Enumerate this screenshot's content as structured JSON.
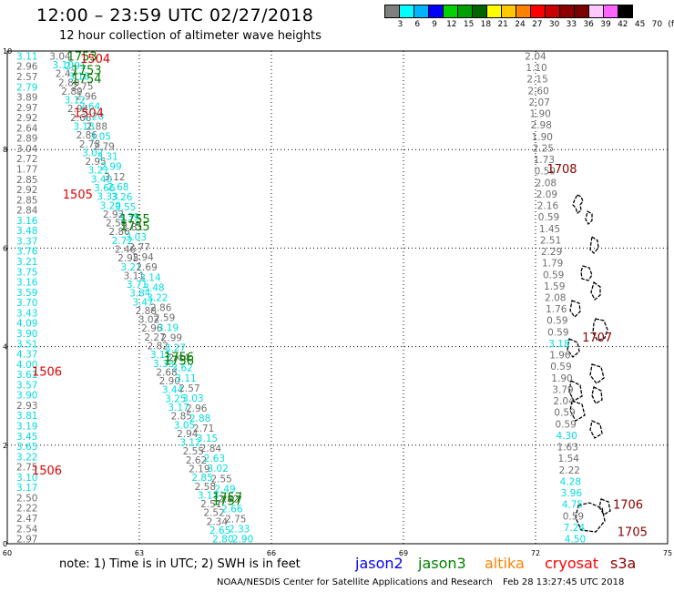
{
  "header": {
    "title": "12:00 – 23:59 UTC 02/27/2018",
    "subtitle": "12 hour collection of altimeter wave heights"
  },
  "colorbar": {
    "colors": [
      "#7f7f7f",
      "#00ffff",
      "#00b4ff",
      "#0000ff",
      "#00d200",
      "#00a000",
      "#006400",
      "#ffff00",
      "#ffc800",
      "#ff8200",
      "#ff0000",
      "#c80000",
      "#8c0000",
      "#780000",
      "#ffc8ff",
      "#ff64ff",
      "#000000"
    ],
    "labels": [
      "3",
      "6",
      "9",
      "12",
      "15",
      "18",
      "21",
      "24",
      "27",
      "30",
      "33",
      "36",
      "39",
      "42",
      "45",
      "70",
      "(ft)"
    ]
  },
  "footer": {
    "note": "note:  1) Time is in UTC;  2) SWH is in feet",
    "satellites": [
      {
        "name": "jason2",
        "color": "#0000ff"
      },
      {
        "name": "jason3",
        "color": "#008000"
      },
      {
        "name": "altika",
        "color": "#ff8000"
      },
      {
        "name": "cryosat",
        "color": "#ff0000"
      },
      {
        "name": "s3a",
        "color": "#8b0000"
      }
    ],
    "credit": "NOAA/NESDIS Center for Satellite Applications and Research",
    "timestamp": "Feb 28 13:27:45 UTC 2018"
  },
  "chart_data": {
    "type": "scatter",
    "xlim": [
      60,
      75
    ],
    "ylim": [
      0,
      10
    ],
    "x_ticks": [
      "60",
      "63",
      "66",
      "69",
      "72",
      "75"
    ],
    "y_ticks": [
      "0",
      "2",
      "4",
      "6",
      "8",
      "10"
    ],
    "grid": true,
    "track_colors": {
      "gray": "#6e6e6e",
      "cyan": "#00dede",
      "green": "#008000",
      "red": "#e00000",
      "darkred": "#8b0000"
    },
    "tracks": [
      {
        "name": "left column",
        "x_start": 60.45,
        "y_start": 9.9,
        "x_end": 60.45,
        "y_end": 0.1,
        "color_key": "mixed",
        "values": [
          "3.11",
          "2.96",
          "2.57",
          "2.79",
          "3.89",
          "2.97",
          "2.92",
          "2.64",
          "2.89",
          "3.04",
          "2.72",
          "1.77",
          "2.85",
          "2.92",
          "2.85",
          "2.84",
          "3.16",
          "3.48",
          "3.37",
          "3.76",
          "3.21",
          "3.75",
          "3.16",
          "3.59",
          "3.70",
          "3.43",
          "4.09",
          "3.90",
          "3.51",
          "4.37",
          "4.00",
          "3.61",
          "3.57",
          "3.90",
          "2.93",
          "3.81",
          "3.19",
          "3.45",
          "3.65",
          "3.22",
          "2.75",
          "3.10",
          "3.17",
          "2.50",
          "2.22",
          "2.47",
          "2.54",
          "2.97"
        ],
        "colors": [
          "c",
          "g",
          "g",
          "c",
          "g",
          "g",
          "g",
          "g",
          "g",
          "g",
          "g",
          "g",
          "g",
          "g",
          "g",
          "g",
          "c",
          "c",
          "c",
          "c",
          "c",
          "c",
          "c",
          "c",
          "c",
          "c",
          "c",
          "c",
          "c",
          "c",
          "c",
          "c",
          "c",
          "c",
          "g",
          "c",
          "c",
          "c",
          "c",
          "c",
          "g",
          "c",
          "c",
          "g",
          "g",
          "g",
          "g",
          "g"
        ]
      },
      {
        "name": "diagonal track A",
        "x_start": 61.2,
        "y_start": 9.9,
        "x_end": 64.9,
        "y_end": 0.1,
        "color_key": "mixed",
        "values": [
          "3.04",
          "3.10",
          "2.47",
          "2.80",
          "2.89",
          "3.12",
          "2.94",
          "2.66",
          "3.18",
          "2.86",
          "2.78",
          "3.02",
          "2.95",
          "3.21",
          "3.40",
          "3.66",
          "3.33",
          "3.20",
          "2.92",
          "2.58",
          "2.86",
          "2.72",
          "2.46",
          "2.95",
          "3.21",
          "3.11",
          "3.71",
          "3.84",
          "3.47",
          "2.88",
          "3.02",
          "2.96",
          "2.27",
          "2.82",
          "3.15",
          "3.33",
          "2.68",
          "2.90",
          "3.44",
          "3.25",
          "3.17",
          "2.85",
          "3.05",
          "2.94",
          "3.12",
          "2.55",
          "2.62",
          "2.19",
          "2.85",
          "2.58",
          "3.13",
          "2.51",
          "2.52",
          "2.34",
          "2.65",
          "2.80"
        ],
        "colors": [
          "g",
          "c",
          "g",
          "g",
          "g",
          "c",
          "g",
          "g",
          "c",
          "g",
          "g",
          "c",
          "g",
          "c",
          "c",
          "c",
          "c",
          "c",
          "g",
          "g",
          "g",
          "c",
          "g",
          "g",
          "c",
          "g",
          "c",
          "c",
          "c",
          "g",
          "g",
          "g",
          "g",
          "g",
          "c",
          "c",
          "g",
          "g",
          "c",
          "c",
          "c",
          "g",
          "c",
          "g",
          "c",
          "g",
          "g",
          "g",
          "c",
          "g",
          "c",
          "g",
          "g",
          "g",
          "c",
          "c"
        ]
      },
      {
        "name": "diagonal track B",
        "x_start": 61.55,
        "y_start": 9.7,
        "x_end": 65.35,
        "y_end": 0.1,
        "color_key": "mixed",
        "values": [
          "2.91",
          "3.18",
          "2.75",
          "2.96",
          "2.64",
          "3.20",
          "2.88",
          "3.05",
          "2.79",
          "3.31",
          "2.99",
          "3.12",
          "2.68",
          "3.26",
          "3.55",
          "3.39",
          "2.81",
          "3.03",
          "2.77",
          "2.94",
          "2.69",
          "3.14",
          "3.48",
          "3.22",
          "2.86",
          "2.59",
          "3.19",
          "2.99",
          "3.27",
          "2.44",
          "3.62",
          "3.11",
          "2.57",
          "3.03",
          "2.96",
          "2.88",
          "2.71",
          "3.15",
          "2.84",
          "2.63",
          "3.02",
          "2.55",
          "2.49",
          "2.82",
          "2.66",
          "2.75",
          "2.33",
          "2.90"
        ],
        "colors": [
          "c",
          "c",
          "g",
          "g",
          "c",
          "c",
          "g",
          "c",
          "g",
          "c",
          "c",
          "g",
          "c",
          "c",
          "c",
          "c",
          "g",
          "c",
          "g",
          "g",
          "g",
          "c",
          "c",
          "c",
          "g",
          "g",
          "c",
          "g",
          "c",
          "g",
          "c",
          "c",
          "g",
          "c",
          "g",
          "c",
          "g",
          "c",
          "g",
          "c",
          "c",
          "g",
          "c",
          "g",
          "c",
          "g",
          "c",
          "c"
        ]
      },
      {
        "name": "right track",
        "x_start": 72.0,
        "y_start": 9.9,
        "x_end": 72.9,
        "y_end": 0.1,
        "color_key": "mixed",
        "values": [
          "2.04",
          "1.10",
          "2.15",
          "2.60",
          "2.07",
          "1.90",
          "2.98",
          "1.90",
          "2.25",
          "1.73",
          "0.59",
          "2.08",
          "2.09",
          "2.16",
          "0.59",
          "1.45",
          "2.51",
          "2.29",
          "1.79",
          "0.59",
          "1.59",
          "2.08",
          "1.76",
          "0.59",
          "0.59",
          "3.18",
          "1.96",
          "0.59",
          "1.90",
          "3.79",
          "2.04",
          "0.59",
          "0.59",
          "4.30",
          "1.63",
          "1.54",
          "2.22",
          "4.28",
          "3.96",
          "4.75",
          "0.59",
          "7.24",
          "4.50"
        ],
        "colors": [
          "g",
          "g",
          "g",
          "g",
          "g",
          "g",
          "g",
          "g",
          "g",
          "g",
          "g",
          "g",
          "g",
          "g",
          "g",
          "g",
          "g",
          "g",
          "g",
          "g",
          "g",
          "g",
          "g",
          "g",
          "g",
          "c",
          "g",
          "g",
          "g",
          "g",
          "g",
          "g",
          "g",
          "c",
          "g",
          "g",
          "g",
          "c",
          "c",
          "c",
          "g",
          "c",
          "c"
        ]
      }
    ],
    "time_labels": [
      {
        "text": "1753",
        "x": 61.7,
        "y": 9.9,
        "color": "green"
      },
      {
        "text": "1504",
        "x": 62.0,
        "y": 9.85,
        "color": "red"
      },
      {
        "text": "1753",
        "x": 61.8,
        "y": 9.62,
        "color": "green"
      },
      {
        "text": "1754",
        "x": 61.8,
        "y": 9.45,
        "color": "green"
      },
      {
        "text": "1504",
        "x": 61.85,
        "y": 8.75,
        "color": "red"
      },
      {
        "text": "1505",
        "x": 61.6,
        "y": 7.1,
        "color": "red"
      },
      {
        "text": "1755",
        "x": 62.9,
        "y": 6.6,
        "color": "green"
      },
      {
        "text": "1755",
        "x": 62.9,
        "y": 6.45,
        "color": "green"
      },
      {
        "text": "1708",
        "x": 72.6,
        "y": 7.62,
        "color": "darkred"
      },
      {
        "text": "1756",
        "x": 63.9,
        "y": 3.8,
        "color": "green"
      },
      {
        "text": "1756",
        "x": 63.9,
        "y": 3.72,
        "color": "green"
      },
      {
        "text": "1506",
        "x": 60.9,
        "y": 3.5,
        "color": "red"
      },
      {
        "text": "1707",
        "x": 73.4,
        "y": 4.2,
        "color": "darkred"
      },
      {
        "text": "1506",
        "x": 60.9,
        "y": 1.5,
        "color": "red"
      },
      {
        "text": "1757",
        "x": 65.0,
        "y": 0.95,
        "color": "green"
      },
      {
        "text": "1757",
        "x": 65.0,
        "y": 0.88,
        "color": "green"
      },
      {
        "text": "1706",
        "x": 74.1,
        "y": 0.8,
        "color": "darkred"
      },
      {
        "text": "1705",
        "x": 74.2,
        "y": 0.25,
        "color": "darkred"
      }
    ]
  }
}
